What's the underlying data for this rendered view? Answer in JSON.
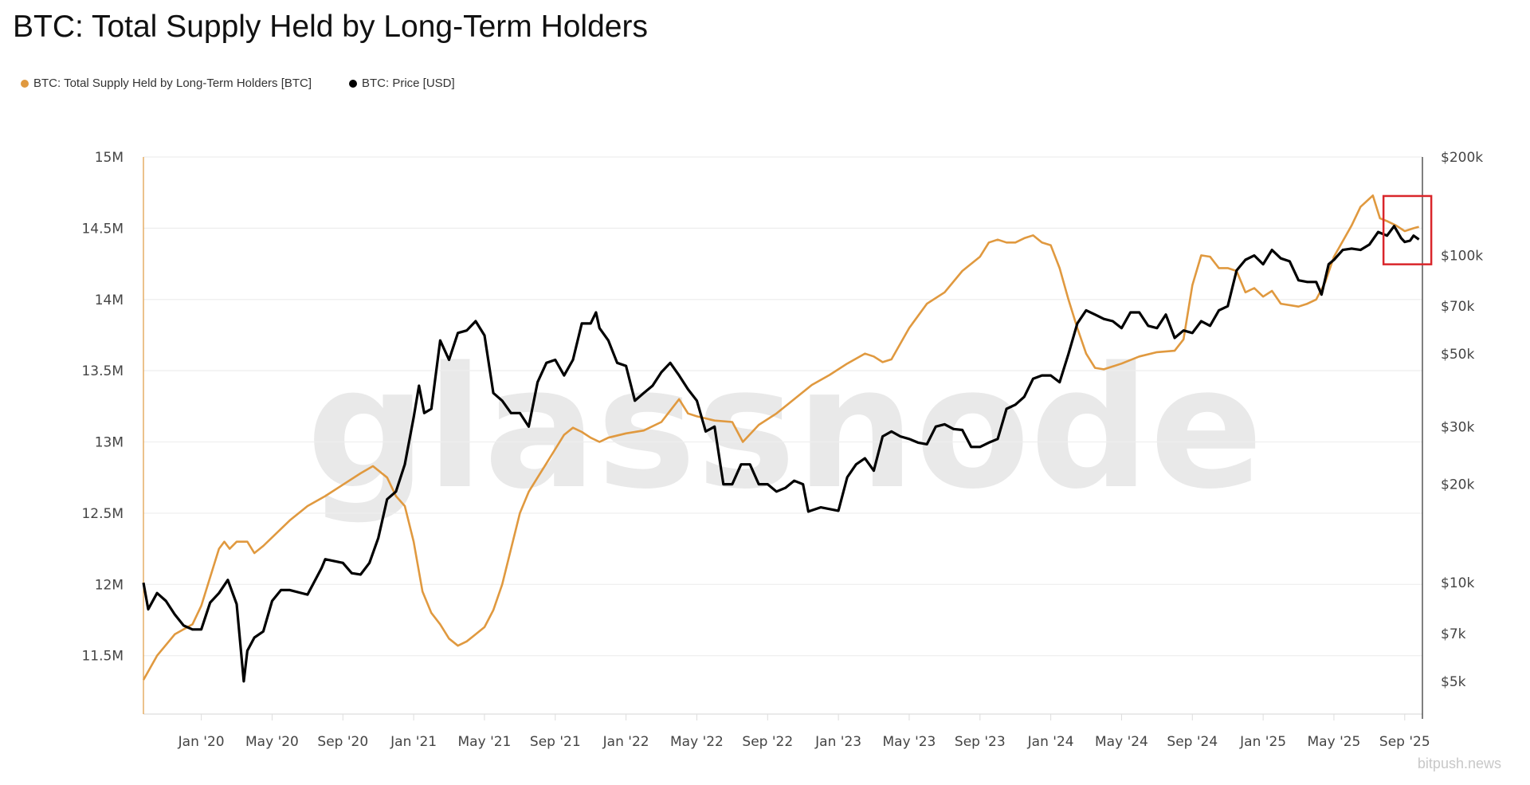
{
  "title": "BTC: Total Supply Held by Long-Term Holders",
  "watermark": "glassnode",
  "corner_watermark": "bitpush.news",
  "colors": {
    "lth": "#e0993f",
    "price": "#000000",
    "highlight": "#d9262b",
    "grid": "#eeeeee",
    "right_axis": "#555555"
  },
  "chart_data": {
    "type": "line",
    "title": "BTC: Total Supply Held by Long-Term Holders",
    "x_unit": "months since Jan 2020",
    "xlim": [
      -3.27,
      69.0
    ],
    "x_ticks": [
      {
        "m": 0,
        "label": "Jan '20"
      },
      {
        "m": 4,
        "label": "May '20"
      },
      {
        "m": 8,
        "label": "Sep '20"
      },
      {
        "m": 12,
        "label": "Jan '21"
      },
      {
        "m": 16,
        "label": "May '21"
      },
      {
        "m": 20,
        "label": "Sep '21"
      },
      {
        "m": 24,
        "label": "Jan '22"
      },
      {
        "m": 28,
        "label": "May '22"
      },
      {
        "m": 32,
        "label": "Sep '22"
      },
      {
        "m": 36,
        "label": "Jan '23"
      },
      {
        "m": 40,
        "label": "May '23"
      },
      {
        "m": 44,
        "label": "Sep '23"
      },
      {
        "m": 48,
        "label": "Jan '24"
      },
      {
        "m": 52,
        "label": "May '24"
      },
      {
        "m": 56,
        "label": "Sep '24"
      },
      {
        "m": 60,
        "label": "Jan '25"
      },
      {
        "m": 64,
        "label": "May '25"
      },
      {
        "m": 68,
        "label": "Sep '25"
      }
    ],
    "left_axis": {
      "ylim": [
        11.09,
        15.0
      ],
      "unit": "M BTC",
      "ticks": [
        {
          "v": 15,
          "label": "15M"
        },
        {
          "v": 14.5,
          "label": "14.5M"
        },
        {
          "v": 14,
          "label": "14M"
        },
        {
          "v": 13.5,
          "label": "13.5M"
        },
        {
          "v": 13,
          "label": "13M"
        },
        {
          "v": 12.5,
          "label": "12.5M"
        },
        {
          "v": 12,
          "label": "12M"
        },
        {
          "v": 11.5,
          "label": "11.5M"
        }
      ]
    },
    "right_axis": {
      "scale": "log",
      "ylim": [
        3970,
        200000
      ],
      "unit": "USD",
      "ticks": [
        {
          "v": 200000,
          "label": "$200k"
        },
        {
          "v": 100000,
          "label": "$100k"
        },
        {
          "v": 70000,
          "label": "$70k"
        },
        {
          "v": 50000,
          "label": "$50k"
        },
        {
          "v": 30000,
          "label": "$30k"
        },
        {
          "v": 20000,
          "label": "$20k"
        },
        {
          "v": 10000,
          "label": "$10k"
        },
        {
          "v": 7000,
          "label": "$7k"
        },
        {
          "v": 5000,
          "label": "$5k"
        }
      ]
    },
    "legend": "top-left",
    "series": [
      {
        "name": "BTC: Total Supply Held by Long-Term Holders [BTC]",
        "axis": "left",
        "color": "#e0993f",
        "points": [
          [
            -3.27,
            11.33
          ],
          [
            -2.5,
            11.5
          ],
          [
            -1.5,
            11.65
          ],
          [
            -0.5,
            11.72
          ],
          [
            0,
            11.85
          ],
          [
            0.5,
            12.05
          ],
          [
            1,
            12.25
          ],
          [
            1.3,
            12.3
          ],
          [
            1.6,
            12.25
          ],
          [
            2,
            12.3
          ],
          [
            2.6,
            12.3
          ],
          [
            3,
            12.22
          ],
          [
            3.5,
            12.27
          ],
          [
            4,
            12.33
          ],
          [
            5,
            12.45
          ],
          [
            6,
            12.55
          ],
          [
            7,
            12.62
          ],
          [
            8,
            12.7
          ],
          [
            9,
            12.78
          ],
          [
            9.7,
            12.83
          ],
          [
            10.5,
            12.75
          ],
          [
            11,
            12.62
          ],
          [
            11.5,
            12.55
          ],
          [
            12,
            12.3
          ],
          [
            12.5,
            11.95
          ],
          [
            13,
            11.8
          ],
          [
            13.5,
            11.72
          ],
          [
            14,
            11.62
          ],
          [
            14.5,
            11.57
          ],
          [
            15,
            11.6
          ],
          [
            15.5,
            11.65
          ],
          [
            16,
            11.7
          ],
          [
            16.5,
            11.82
          ],
          [
            17,
            12.0
          ],
          [
            17.5,
            12.25
          ],
          [
            18,
            12.5
          ],
          [
            18.5,
            12.65
          ],
          [
            19,
            12.75
          ],
          [
            19.5,
            12.85
          ],
          [
            20,
            12.95
          ],
          [
            20.5,
            13.05
          ],
          [
            21,
            13.1
          ],
          [
            21.5,
            13.07
          ],
          [
            22,
            13.03
          ],
          [
            22.5,
            13.0
          ],
          [
            23,
            13.03
          ],
          [
            24,
            13.06
          ],
          [
            25,
            13.08
          ],
          [
            26,
            13.14
          ],
          [
            26.5,
            13.22
          ],
          [
            27,
            13.3
          ],
          [
            27.5,
            13.2
          ],
          [
            28,
            13.18
          ],
          [
            29,
            13.15
          ],
          [
            30,
            13.14
          ],
          [
            30.6,
            13.0
          ],
          [
            31.5,
            13.12
          ],
          [
            32.5,
            13.2
          ],
          [
            33.5,
            13.3
          ],
          [
            34.5,
            13.4
          ],
          [
            35.5,
            13.47
          ],
          [
            36.5,
            13.55
          ],
          [
            37.5,
            13.62
          ],
          [
            38,
            13.6
          ],
          [
            38.5,
            13.56
          ],
          [
            39,
            13.58
          ],
          [
            40,
            13.8
          ],
          [
            41,
            13.97
          ],
          [
            42,
            14.05
          ],
          [
            43,
            14.2
          ],
          [
            44,
            14.3
          ],
          [
            44.5,
            14.4
          ],
          [
            45,
            14.42
          ],
          [
            45.5,
            14.4
          ],
          [
            46,
            14.4
          ],
          [
            46.5,
            14.43
          ],
          [
            47,
            14.45
          ],
          [
            47.5,
            14.4
          ],
          [
            48,
            14.38
          ],
          [
            48.5,
            14.22
          ],
          [
            49,
            14.0
          ],
          [
            49.5,
            13.8
          ],
          [
            50,
            13.62
          ],
          [
            50.5,
            13.52
          ],
          [
            51,
            13.51
          ],
          [
            52,
            13.55
          ],
          [
            53,
            13.6
          ],
          [
            54,
            13.63
          ],
          [
            55,
            13.64
          ],
          [
            55.5,
            13.72
          ],
          [
            56,
            14.1
          ],
          [
            56.5,
            14.31
          ],
          [
            57,
            14.3
          ],
          [
            57.5,
            14.22
          ],
          [
            58,
            14.22
          ],
          [
            58.5,
            14.2
          ],
          [
            59,
            14.05
          ],
          [
            59.5,
            14.08
          ],
          [
            60,
            14.02
          ],
          [
            60.5,
            14.06
          ],
          [
            61,
            13.97
          ],
          [
            62,
            13.95
          ],
          [
            62.5,
            13.97
          ],
          [
            63,
            14.0
          ],
          [
            63.5,
            14.12
          ],
          [
            64,
            14.3
          ],
          [
            65,
            14.52
          ],
          [
            65.5,
            14.65
          ],
          [
            66.2,
            14.73
          ],
          [
            66.6,
            14.57
          ],
          [
            67,
            14.55
          ],
          [
            67.5,
            14.52
          ],
          [
            68,
            14.48
          ],
          [
            68.5,
            14.5
          ],
          [
            68.8,
            14.51
          ]
        ]
      },
      {
        "name": "BTC: Price [USD]",
        "axis": "right",
        "color": "#000000",
        "points": [
          [
            -3.27,
            10000
          ],
          [
            -3,
            8300
          ],
          [
            -2.5,
            9300
          ],
          [
            -2,
            8800
          ],
          [
            -1.5,
            8000
          ],
          [
            -1,
            7400
          ],
          [
            -0.5,
            7200
          ],
          [
            0,
            7200
          ],
          [
            0.5,
            8700
          ],
          [
            1,
            9300
          ],
          [
            1.5,
            10200
          ],
          [
            2,
            8600
          ],
          [
            2.4,
            5000
          ],
          [
            2.6,
            6200
          ],
          [
            3,
            6800
          ],
          [
            3.5,
            7100
          ],
          [
            4,
            8800
          ],
          [
            4.5,
            9500
          ],
          [
            5,
            9500
          ],
          [
            6,
            9200
          ],
          [
            6.8,
            11100
          ],
          [
            7,
            11800
          ],
          [
            8,
            11500
          ],
          [
            8.5,
            10700
          ],
          [
            9,
            10600
          ],
          [
            9.5,
            11500
          ],
          [
            10,
            13700
          ],
          [
            10.5,
            18000
          ],
          [
            11,
            19000
          ],
          [
            11.5,
            23000
          ],
          [
            12,
            32000
          ],
          [
            12.3,
            40000
          ],
          [
            12.6,
            33000
          ],
          [
            13,
            34000
          ],
          [
            13.5,
            55000
          ],
          [
            14,
            48000
          ],
          [
            14.5,
            58000
          ],
          [
            15,
            59000
          ],
          [
            15.5,
            63000
          ],
          [
            16,
            57000
          ],
          [
            16.5,
            38000
          ],
          [
            17,
            36000
          ],
          [
            17.5,
            33000
          ],
          [
            18,
            33000
          ],
          [
            18.5,
            30000
          ],
          [
            19,
            41000
          ],
          [
            19.5,
            47000
          ],
          [
            20,
            48000
          ],
          [
            20.5,
            43000
          ],
          [
            21,
            48000
          ],
          [
            21.5,
            62000
          ],
          [
            22,
            62000
          ],
          [
            22.3,
            67000
          ],
          [
            22.5,
            60000
          ],
          [
            23,
            55000
          ],
          [
            23.5,
            47000
          ],
          [
            24,
            46000
          ],
          [
            24.5,
            36000
          ],
          [
            25,
            38000
          ],
          [
            25.5,
            40000
          ],
          [
            26,
            44000
          ],
          [
            26.5,
            47000
          ],
          [
            27,
            43000
          ],
          [
            27.5,
            39000
          ],
          [
            28,
            36000
          ],
          [
            28.5,
            29000
          ],
          [
            29,
            30000
          ],
          [
            29.5,
            20000
          ],
          [
            30,
            20000
          ],
          [
            30.5,
            23000
          ],
          [
            31,
            23000
          ],
          [
            31.5,
            20000
          ],
          [
            32,
            20000
          ],
          [
            32.5,
            19000
          ],
          [
            33,
            19500
          ],
          [
            33.5,
            20500
          ],
          [
            34,
            20000
          ],
          [
            34.3,
            16500
          ],
          [
            35,
            17000
          ],
          [
            36,
            16600
          ],
          [
            36.5,
            21000
          ],
          [
            37,
            23000
          ],
          [
            37.5,
            24000
          ],
          [
            38,
            22000
          ],
          [
            38.5,
            28000
          ],
          [
            39,
            29000
          ],
          [
            39.5,
            28000
          ],
          [
            40,
            27500
          ],
          [
            40.5,
            26800
          ],
          [
            41,
            26500
          ],
          [
            41.5,
            30000
          ],
          [
            42,
            30500
          ],
          [
            42.5,
            29500
          ],
          [
            43,
            29300
          ],
          [
            43.5,
            26000
          ],
          [
            44,
            26000
          ],
          [
            44.5,
            26800
          ],
          [
            45,
            27500
          ],
          [
            45.5,
            34000
          ],
          [
            46,
            35000
          ],
          [
            46.5,
            37000
          ],
          [
            47,
            42000
          ],
          [
            47.5,
            43000
          ],
          [
            48,
            43000
          ],
          [
            48.5,
            41000
          ],
          [
            49,
            50000
          ],
          [
            49.5,
            62000
          ],
          [
            50,
            68000
          ],
          [
            50.5,
            66000
          ],
          [
            51,
            64000
          ],
          [
            51.5,
            63000
          ],
          [
            52,
            60000
          ],
          [
            52.5,
            67000
          ],
          [
            53,
            67000
          ],
          [
            53.5,
            61000
          ],
          [
            54,
            60000
          ],
          [
            54.5,
            66000
          ],
          [
            55,
            56000
          ],
          [
            55.5,
            59000
          ],
          [
            56,
            58000
          ],
          [
            56.5,
            63000
          ],
          [
            57,
            61000
          ],
          [
            57.5,
            68000
          ],
          [
            58,
            70000
          ],
          [
            58.5,
            90000
          ],
          [
            59,
            97000
          ],
          [
            59.5,
            100000
          ],
          [
            60,
            94000
          ],
          [
            60.5,
            104000
          ],
          [
            61,
            98000
          ],
          [
            61.5,
            96000
          ],
          [
            62,
            84000
          ],
          [
            62.5,
            83000
          ],
          [
            63,
            83000
          ],
          [
            63.3,
            76000
          ],
          [
            63.7,
            94000
          ],
          [
            64,
            97000
          ],
          [
            64.5,
            104000
          ],
          [
            65,
            105000
          ],
          [
            65.5,
            104000
          ],
          [
            66,
            108000
          ],
          [
            66.5,
            118000
          ],
          [
            67,
            115000
          ],
          [
            67.4,
            123000
          ],
          [
            67.8,
            113000
          ],
          [
            68,
            110000
          ],
          [
            68.3,
            111000
          ],
          [
            68.5,
            115000
          ],
          [
            68.8,
            112000
          ]
        ]
      }
    ],
    "highlight_box": {
      "x_range": [
        66.8,
        69.5
      ],
      "price_range": [
        94000,
        152000
      ]
    }
  }
}
